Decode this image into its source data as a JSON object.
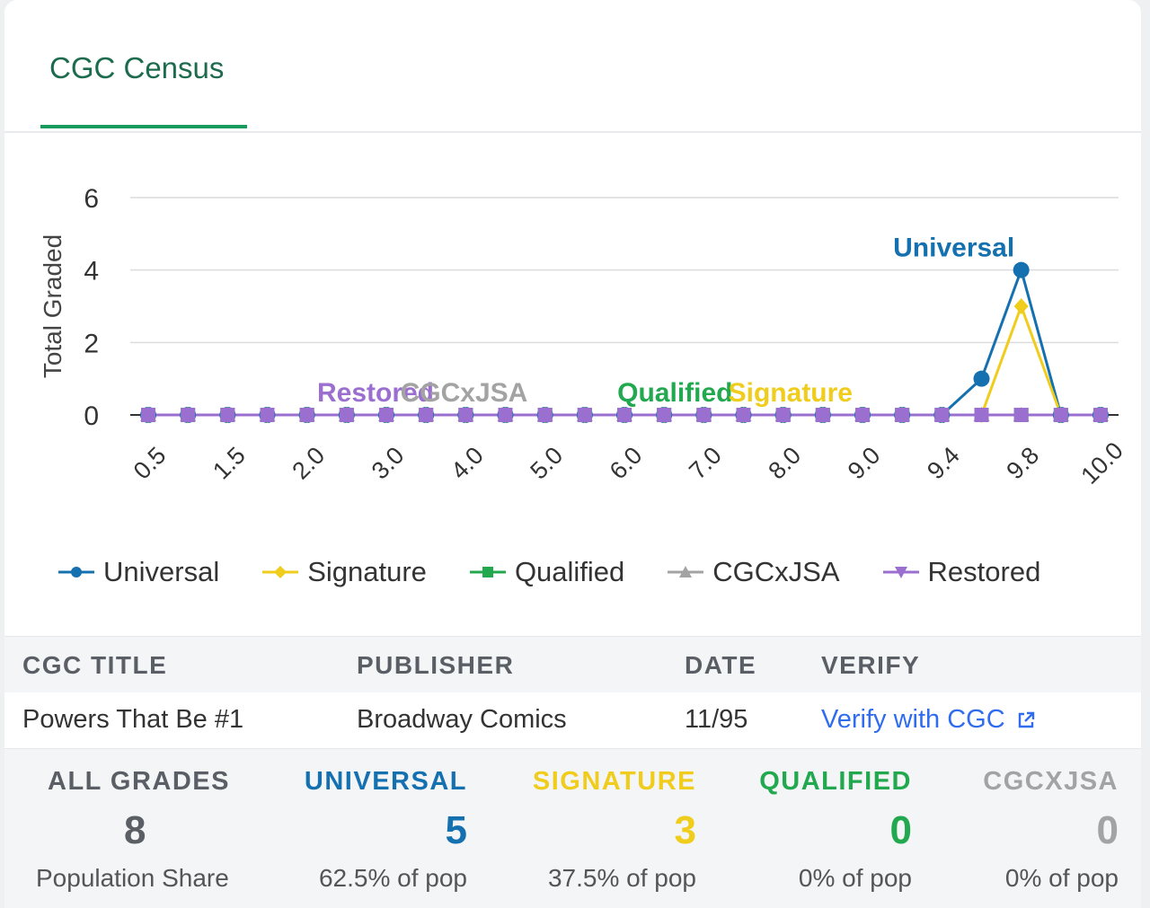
{
  "tabs": [
    {
      "label": "CGC Census"
    }
  ],
  "colors": {
    "universal": "#1570b0",
    "signature": "#f0cc1c",
    "qualified": "#22a84f",
    "cgcxjsa": "#a3a3a3",
    "restored": "#9b6fd0",
    "accent": "#1a9b5e"
  },
  "chart_data": {
    "type": "line",
    "ylabel": "Total Graded",
    "xlabel": "",
    "ylim": [
      0,
      6
    ],
    "yticks": [
      0,
      2,
      4,
      6
    ],
    "grid": true,
    "legend_placement": "bottom",
    "x": [
      "0.5",
      "1.0",
      "1.5",
      "1.8",
      "2.0",
      "2.5",
      "3.0",
      "3.5",
      "4.0",
      "4.5",
      "5.0",
      "5.5",
      "6.0",
      "6.5",
      "7.0",
      "7.5",
      "8.0",
      "8.5",
      "9.0",
      "9.2",
      "9.4",
      "9.6",
      "9.8",
      "9.9",
      "10.0"
    ],
    "x_tick_labels": [
      "0.5",
      "1.5",
      "2.0",
      "3.0",
      "4.0",
      "5.0",
      "6.0",
      "7.0",
      "8.0",
      "9.0",
      "9.4",
      "9.8",
      "10.0"
    ],
    "series": [
      {
        "name": "Universal",
        "color": "#1570b0",
        "marker": "circle",
        "values": [
          0,
          0,
          0,
          0,
          0,
          0,
          0,
          0,
          0,
          0,
          0,
          0,
          0,
          0,
          0,
          0,
          0,
          0,
          0,
          0,
          0,
          1,
          4,
          0,
          0
        ]
      },
      {
        "name": "Signature",
        "color": "#f0cc1c",
        "marker": "diamond",
        "values": [
          0,
          0,
          0,
          0,
          0,
          0,
          0,
          0,
          0,
          0,
          0,
          0,
          0,
          0,
          0,
          0,
          0,
          0,
          0,
          0,
          0,
          0,
          3,
          0,
          0
        ]
      },
      {
        "name": "Qualified",
        "color": "#22a84f",
        "marker": "square",
        "values": [
          0,
          0,
          0,
          0,
          0,
          0,
          0,
          0,
          0,
          0,
          0,
          0,
          0,
          0,
          0,
          0,
          0,
          0,
          0,
          0,
          0,
          0,
          0,
          0,
          0
        ]
      },
      {
        "name": "CGCxJSA",
        "color": "#a3a3a3",
        "marker": "triangle",
        "values": [
          0,
          0,
          0,
          0,
          0,
          0,
          0,
          0,
          0,
          0,
          0,
          0,
          0,
          0,
          0,
          0,
          0,
          0,
          0,
          0,
          0,
          0,
          0,
          0,
          0
        ]
      },
      {
        "name": "Restored",
        "color": "#9b6fd0",
        "marker": "triangle-down",
        "values": [
          0,
          0,
          0,
          0,
          0,
          0,
          0,
          0,
          0,
          0,
          0,
          0,
          0,
          0,
          0,
          0,
          0,
          0,
          0,
          0,
          0,
          0,
          0,
          0,
          0
        ]
      }
    ],
    "annotations": [
      {
        "text": "Universal",
        "color": "#1570b0",
        "at_x": "9.8",
        "at_y": 4
      },
      {
        "text": "Restored",
        "color": "#9b6fd0",
        "at_x": "3.0",
        "at_y": 0
      },
      {
        "text": "CGCxJSA",
        "color": "#a3a3a3",
        "at_x": "4.5",
        "at_y": 0
      },
      {
        "text": "Qualified",
        "color": "#22a84f",
        "at_x": "7.0",
        "at_y": 0
      },
      {
        "text": "Signature",
        "color": "#f0cc1c",
        "at_x": "8.5",
        "at_y": 0
      }
    ]
  },
  "legend": [
    {
      "label": "Universal",
      "color": "#1570b0",
      "icon": "circle-marker-icon"
    },
    {
      "label": "Signature",
      "color": "#f0cc1c",
      "icon": "diamond-marker-icon"
    },
    {
      "label": "Qualified",
      "color": "#22a84f",
      "icon": "square-marker-icon"
    },
    {
      "label": "CGCxJSA",
      "color": "#a3a3a3",
      "icon": "triangle-marker-icon"
    },
    {
      "label": "Restored",
      "color": "#9b6fd0",
      "icon": "triangle-down-marker-icon"
    }
  ],
  "info": {
    "headers": {
      "title": "CGC TITLE",
      "publisher": "PUBLISHER",
      "date": "DATE",
      "verify": "VERIFY"
    },
    "row": {
      "title": "Powers That Be #1",
      "publisher": "Broadway Comics",
      "date": "11/95",
      "verify": "Verify with CGC",
      "verify_icon": "external-link-icon"
    }
  },
  "stats": [
    {
      "label": "ALL GRADES",
      "value": "8",
      "sub": "Population Share",
      "color": "#5a5f66"
    },
    {
      "label": "UNIVERSAL",
      "value": "5",
      "sub": "62.5% of pop",
      "color": "#1570b0"
    },
    {
      "label": "SIGNATURE",
      "value": "3",
      "sub": "37.5% of pop",
      "color": "#f0cc1c"
    },
    {
      "label": "QUALIFIED",
      "value": "0",
      "sub": "0% of pop",
      "color": "#22a84f"
    },
    {
      "label": "CGCXJSA",
      "value": "0",
      "sub": "0% of pop",
      "color": "#a3a3a3"
    }
  ]
}
